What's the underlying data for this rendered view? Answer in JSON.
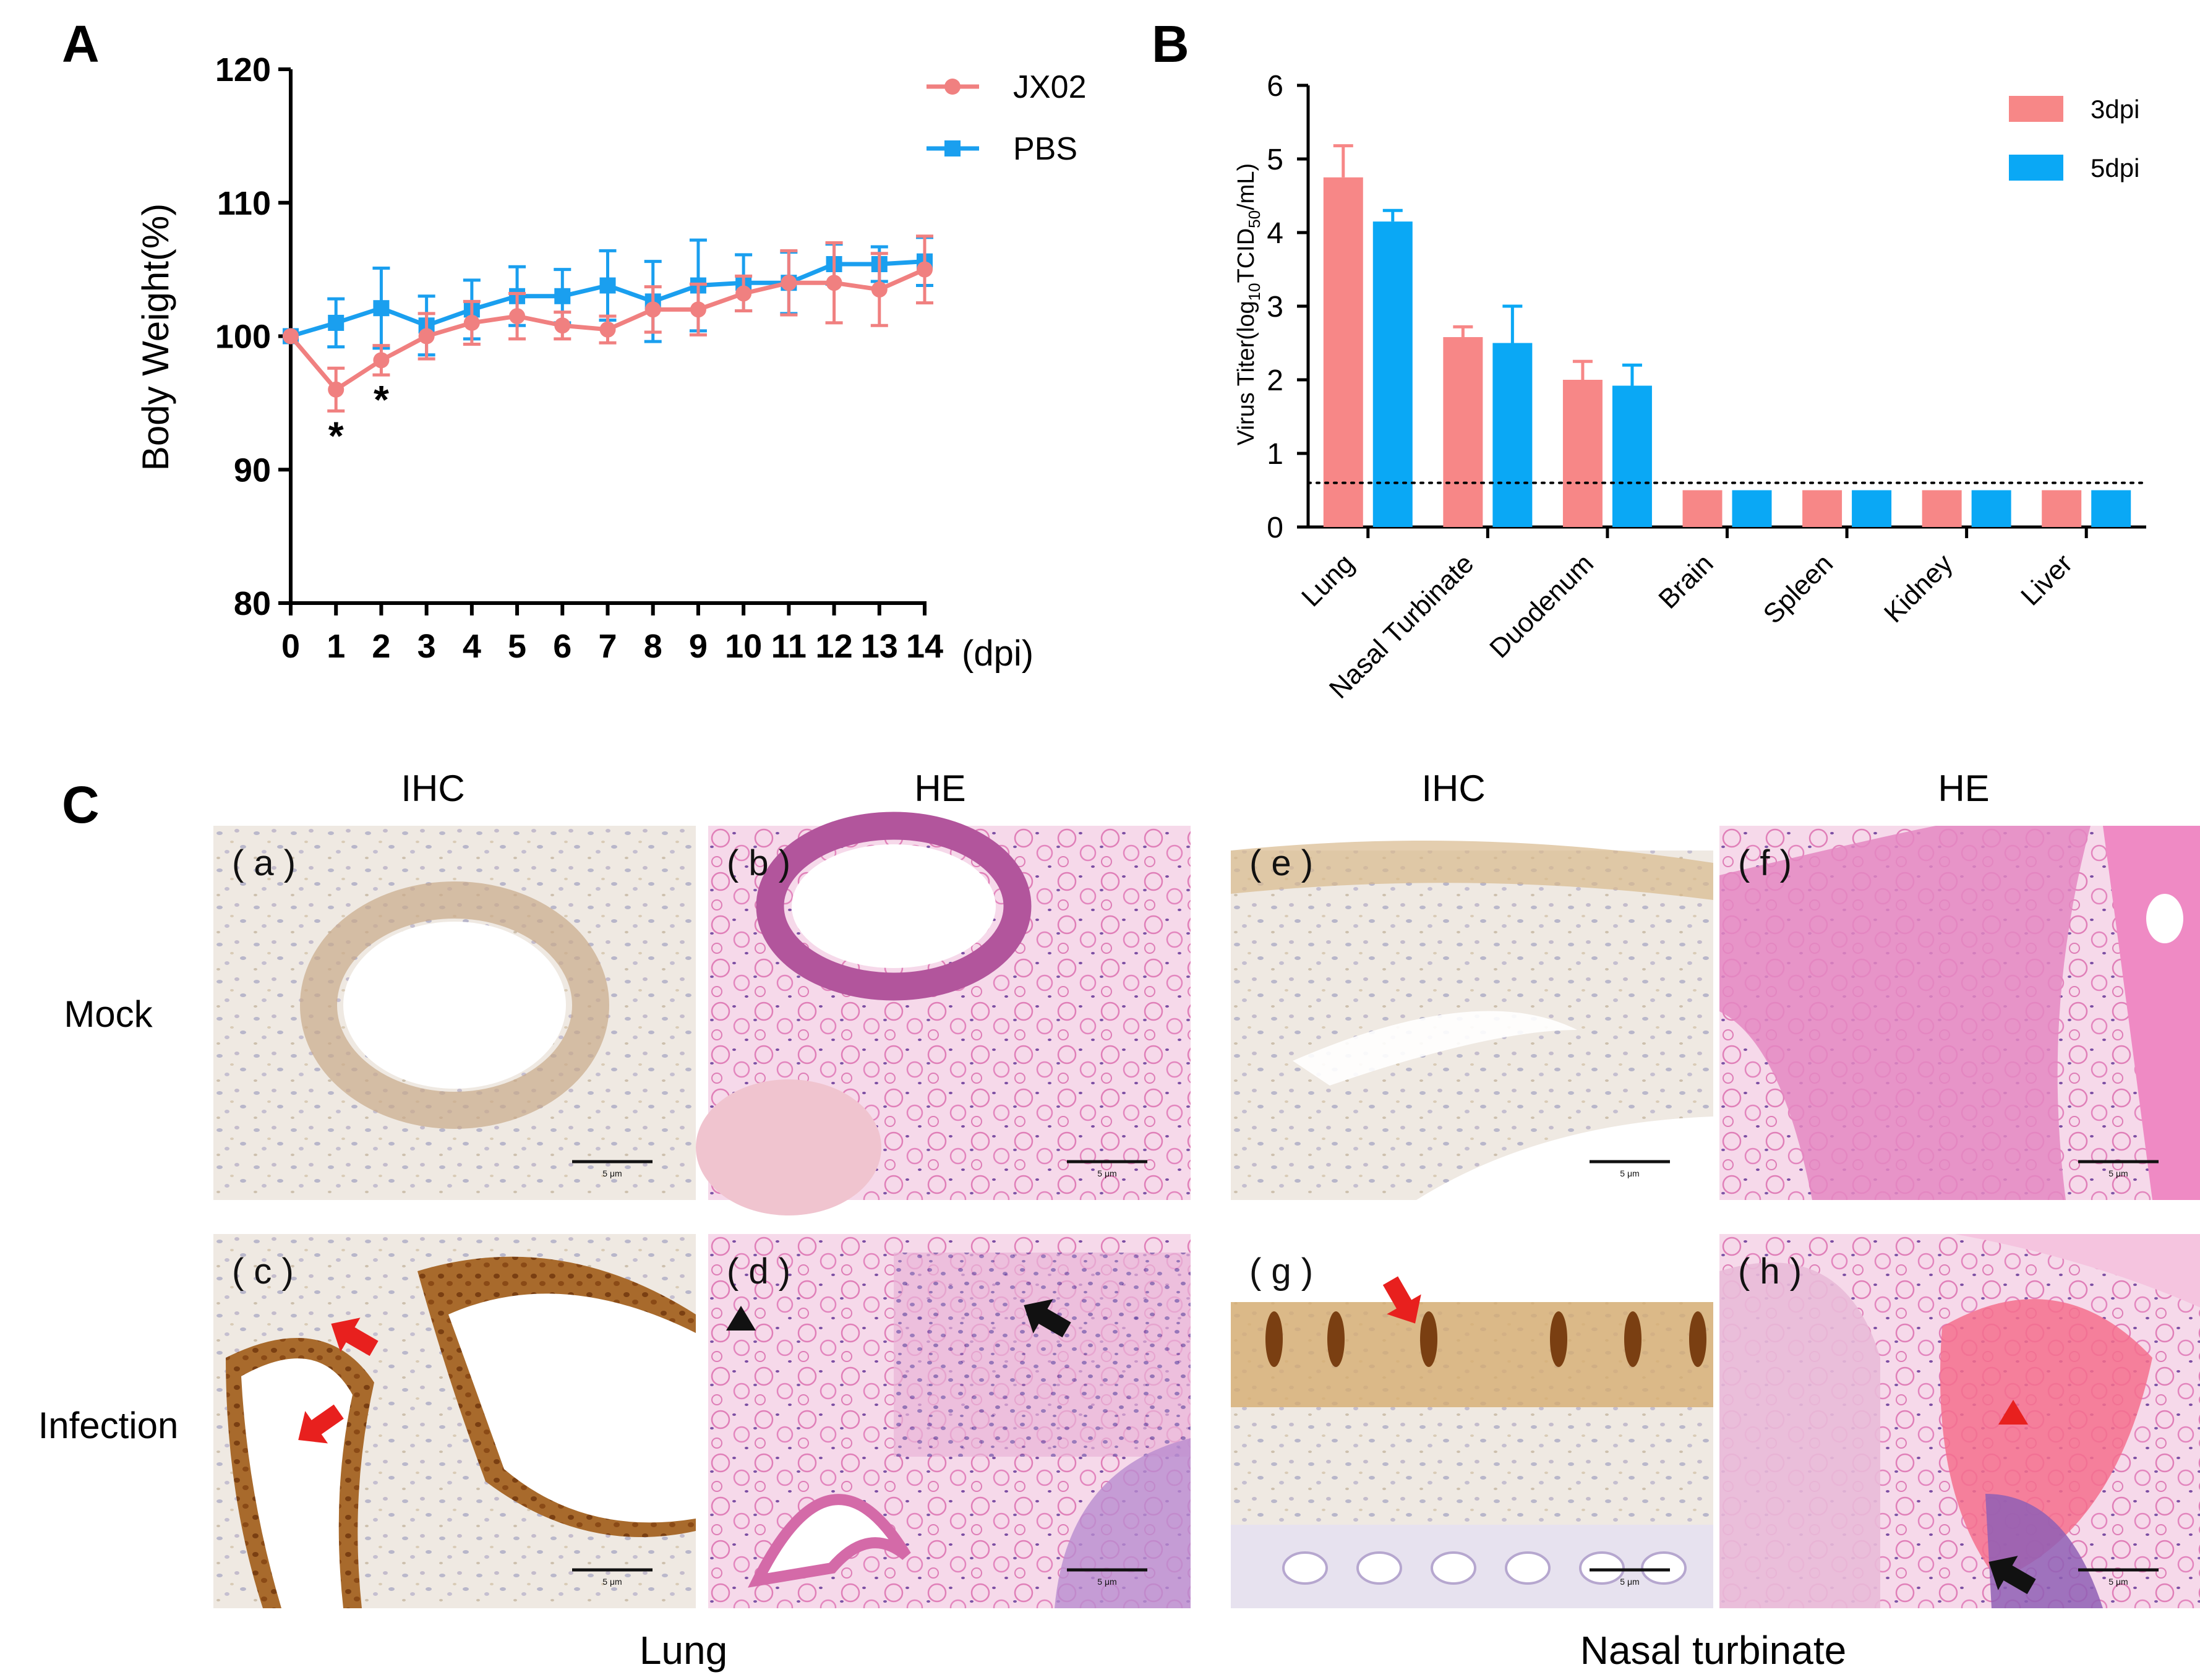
{
  "figure": {
    "panel_letters": [
      "A",
      "B",
      "C"
    ]
  },
  "chart_data": [
    {
      "panel": "A",
      "type": "line",
      "x": [
        0,
        1,
        2,
        3,
        4,
        5,
        6,
        7,
        8,
        9,
        10,
        11,
        12,
        13,
        14
      ],
      "x_tick_labels": [
        "0",
        "1",
        "2",
        "3",
        "4",
        "5",
        "6",
        "7",
        "8",
        "9",
        "10",
        "11",
        "12",
        "13",
        "14"
      ],
      "xlabel": "(dpi)",
      "ylabel": "Body Weight(%)",
      "ylim": [
        80,
        120
      ],
      "y_ticks": [
        80,
        90,
        100,
        110,
        120
      ],
      "legend_position": "top-right",
      "significance_marker": "*",
      "significance_x": [
        1,
        2
      ],
      "series": [
        {
          "name": "JX02",
          "color": "#f08080",
          "marker": "circle",
          "values": [
            100,
            96.0,
            98.2,
            100.0,
            101.0,
            101.5,
            100.8,
            100.5,
            102.0,
            102.0,
            103.2,
            104.0,
            104.0,
            103.5,
            105.0
          ],
          "errors": [
            0,
            1.6,
            1.1,
            1.7,
            1.6,
            1.7,
            1.0,
            1.0,
            1.7,
            1.9,
            1.3,
            2.4,
            3.0,
            2.7,
            2.5
          ]
        },
        {
          "name": "PBS",
          "color": "#1a9fef",
          "marker": "square",
          "values": [
            100,
            101.0,
            102.1,
            100.8,
            102.0,
            103.0,
            103.0,
            103.8,
            102.6,
            103.8,
            104.0,
            104.0,
            105.4,
            105.4,
            105.6
          ],
          "errors": [
            0,
            1.8,
            3.0,
            2.2,
            2.2,
            2.2,
            2.0,
            2.6,
            3.0,
            3.4,
            2.1,
            2.3,
            1.5,
            1.3,
            1.8
          ]
        }
      ]
    },
    {
      "panel": "B",
      "type": "bar",
      "categories": [
        "Lung",
        "Nasal Turbinate",
        "Duodenum",
        "Brain",
        "Spleen",
        "Kidney",
        "Liver"
      ],
      "ylabel_main": "Virus Titer(log",
      "ylabel_sub1": "10",
      "ylabel_mid": "TCID",
      "ylabel_sub2": "50",
      "ylabel_end": "/mL)",
      "ylim": [
        0,
        6
      ],
      "y_ticks": [
        0,
        1,
        2,
        3,
        4,
        5,
        6
      ],
      "detection_limit": 0.6,
      "legend_position": "top-right",
      "series": [
        {
          "name": "3dpi",
          "color": "#f78787",
          "values": [
            4.75,
            2.58,
            2.0,
            0.5,
            0.5,
            0.5,
            0.5
          ],
          "errors": [
            0.43,
            0.14,
            0.25,
            0,
            0,
            0,
            0
          ]
        },
        {
          "name": "5dpi",
          "color": "#0aa8f5",
          "values": [
            4.15,
            2.5,
            1.92,
            0.5,
            0.5,
            0.5,
            0.5
          ],
          "errors": [
            0.15,
            0.5,
            0.28,
            0,
            0,
            0,
            0
          ]
        }
      ]
    }
  ],
  "histology": {
    "column_headers": [
      "IHC",
      "HE",
      "IHC",
      "HE"
    ],
    "row_labels": [
      "Mock",
      "Infection"
    ],
    "group_labels": [
      "Lung",
      "Nasal turbinate"
    ],
    "panels": [
      {
        "label": "( a )",
        "stain": "ihc",
        "group": "lung"
      },
      {
        "label": "( b )",
        "stain": "he",
        "group": "lung"
      },
      {
        "label": "( e )",
        "stain": "ihc",
        "group": "nasal"
      },
      {
        "label": "( f )",
        "stain": "he",
        "group": "nasal"
      },
      {
        "label": "( c )",
        "stain": "ihc",
        "group": "lung"
      },
      {
        "label": "( d )",
        "stain": "he",
        "group": "lung"
      },
      {
        "label": "( g )",
        "stain": "ihc",
        "group": "nasal"
      },
      {
        "label": "( h )",
        "stain": "he",
        "group": "nasal"
      }
    ],
    "scale_bar_label": "5 μm",
    "arrow_colors": {
      "red": "#e8201e",
      "black": "#111111"
    }
  }
}
